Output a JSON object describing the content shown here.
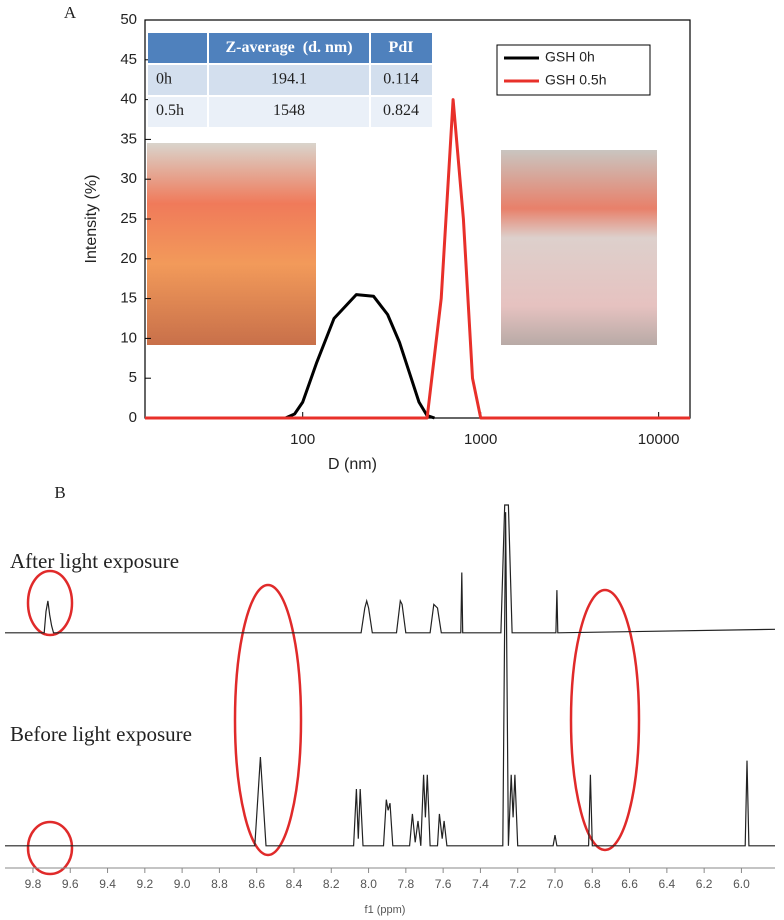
{
  "chart_data": [
    {
      "type": "line",
      "panel_label": "A",
      "x_label": "D (nm)",
      "y_label": "Intensity (%)",
      "x_log": true,
      "xlim": [
        13,
        15000
      ],
      "xticks": [
        100,
        1000,
        10000
      ],
      "ylim": [
        0,
        50
      ],
      "yticks": [
        0,
        5,
        10,
        15,
        20,
        25,
        30,
        35,
        40,
        45,
        50
      ],
      "legend": "upper right",
      "series": [
        {
          "name": "GSH 0h",
          "color": "#000000",
          "x": [
            80,
            90,
            100,
            120,
            150,
            200,
            250,
            300,
            350,
            400,
            450,
            500,
            550
          ],
          "values": [
            0,
            0.5,
            2,
            7,
            12.5,
            15.5,
            15.3,
            13,
            9.5,
            5.5,
            2,
            0.3,
            0
          ]
        },
        {
          "name": "GSH 0.5h",
          "color": "#e8302a",
          "x": [
            13,
            500,
            600,
            700,
            800,
            900,
            1000,
            15000
          ],
          "values": [
            0,
            0,
            15,
            40,
            25,
            5,
            0,
            0
          ]
        }
      ],
      "table": {
        "columns": [
          "Z-average  (d. nm)",
          "PdI"
        ],
        "rows": [
          [
            "0h",
            "194.1",
            "0.114"
          ],
          [
            "0.5h",
            "1548",
            "0.824"
          ]
        ]
      }
    },
    {
      "type": "line",
      "panel_label": "B",
      "x_label": "f1 (ppm)",
      "xlim": [
        9.95,
        5.82
      ],
      "ylim": [
        0,
        100
      ],
      "xticks": [
        9.8,
        9.6,
        9.4,
        9.2,
        {
          "value": 9.0,
          "label": "9.0"
        },
        8.8,
        8.6,
        8.4,
        8.2,
        {
          "value": 8.0,
          "label": "8.0"
        },
        7.8,
        7.6,
        7.4,
        7.2,
        {
          "value": 7.0,
          "label": "7.0"
        },
        6.8,
        6.6,
        6.4,
        6.2,
        {
          "value": 6.0,
          "label": "6.0"
        }
      ],
      "series": [
        {
          "name": "After light exposure",
          "color": "#222222",
          "x": [
            9.95,
            9.74,
            9.73,
            9.72,
            9.71,
            9.7,
            9.69,
            8.04,
            8.02,
            8.01,
            8.0,
            7.98,
            7.85,
            7.83,
            7.82,
            7.8,
            7.67,
            7.65,
            7.63,
            7.61,
            7.505,
            7.5,
            7.495,
            7.29,
            7.27,
            7.25,
            7.23,
            6.995,
            6.99,
            6.985,
            5.82
          ],
          "values": [
            64,
            64,
            70,
            73,
            69,
            66,
            64,
            64,
            71,
            73,
            71,
            64,
            64,
            73,
            72,
            64,
            64,
            72,
            71,
            64,
            64,
            81,
            64,
            64,
            100,
            100,
            64,
            64,
            76,
            64,
            65
          ]
        },
        {
          "name": "Before light exposure",
          "color": "#222222",
          "x": [
            9.95,
            8.61,
            8.58,
            8.55,
            8.08,
            8.065,
            8.055,
            8.045,
            8.03,
            7.92,
            7.905,
            7.895,
            7.885,
            7.87,
            7.78,
            7.765,
            7.75,
            7.735,
            7.72,
            7.705,
            7.695,
            7.685,
            7.67,
            7.63,
            7.62,
            7.605,
            7.595,
            7.58,
            7.28,
            7.265,
            7.25,
            7.235,
            7.225,
            7.215,
            7.2,
            7.01,
            7.0,
            6.99,
            6.82,
            6.81,
            6.8,
            5.98,
            5.97,
            5.96,
            5.82
          ],
          "values": [
            4,
            4,
            29,
            4,
            4,
            20,
            6,
            20,
            4,
            4,
            17,
            14,
            16,
            4,
            4,
            13,
            5,
            11,
            4,
            24,
            12,
            24,
            4,
            4,
            13,
            6,
            11,
            4,
            4,
            98,
            4,
            24,
            12,
            24,
            4,
            4,
            7,
            4,
            4,
            24,
            4,
            4,
            28,
            4,
            4
          ]
        }
      ]
    }
  ]
}
